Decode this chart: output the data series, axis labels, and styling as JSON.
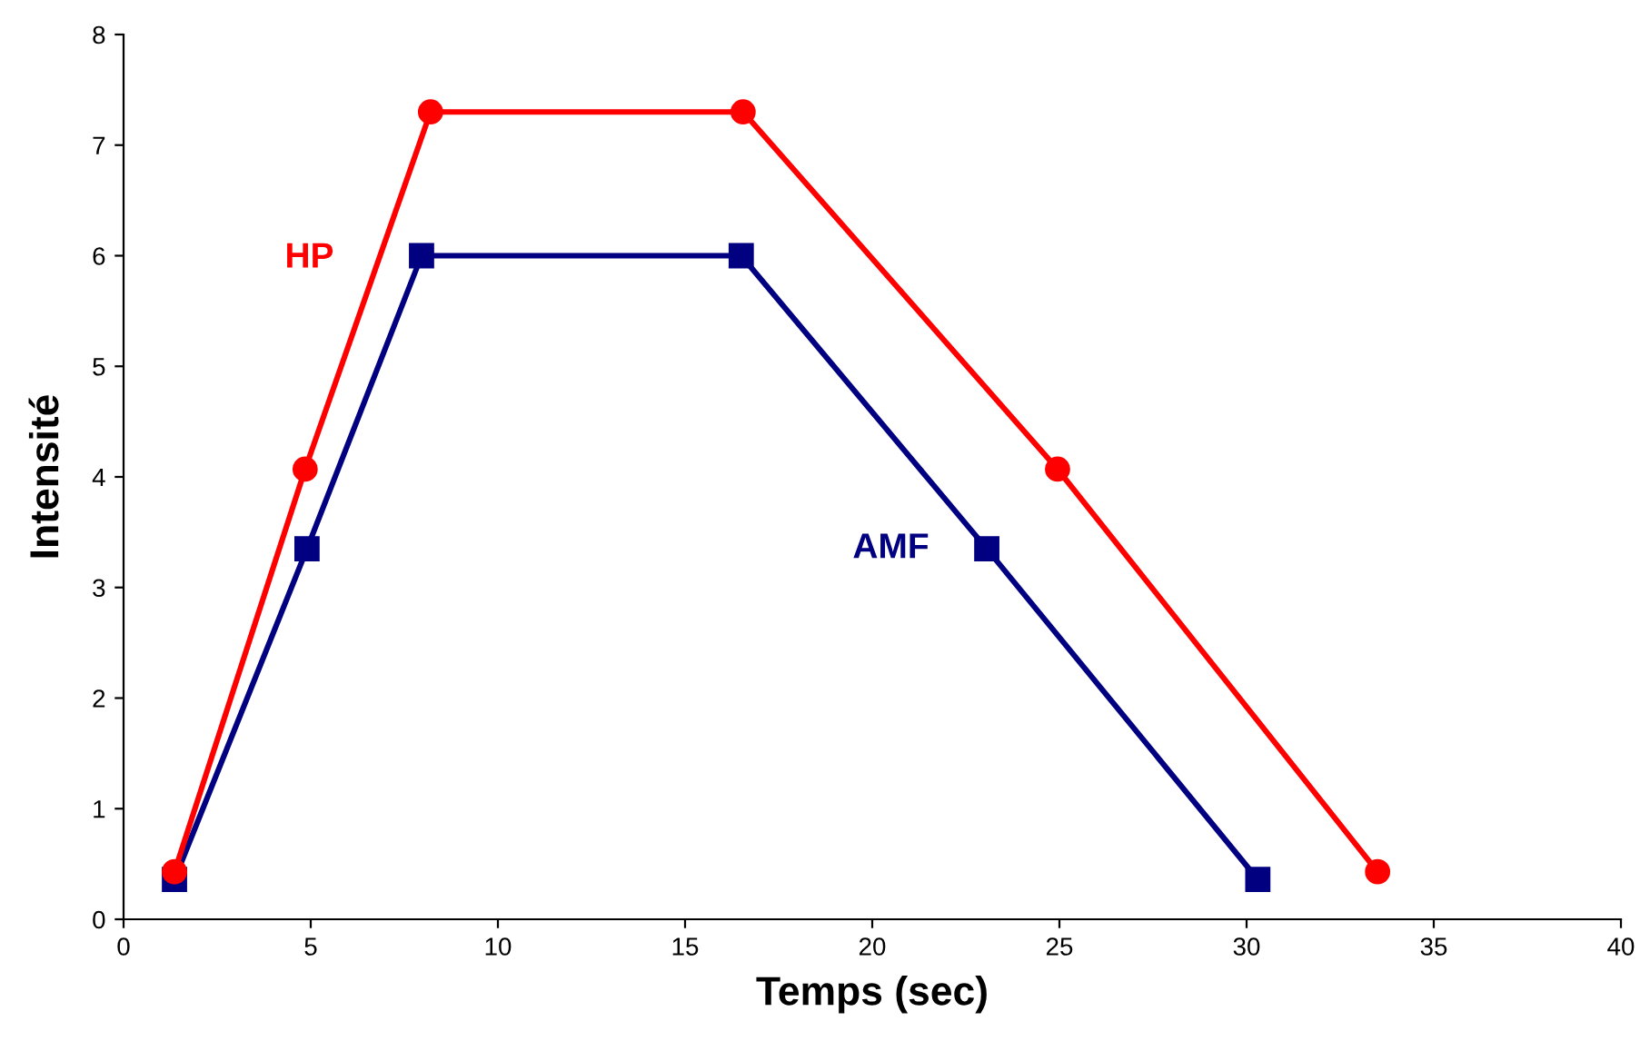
{
  "chart_data": {
    "type": "line",
    "xlabel": "Temps (sec)",
    "ylabel": "Intensité",
    "xlim": [
      0,
      40
    ],
    "xticks": [
      0,
      5,
      10,
      15,
      20,
      25,
      30,
      35,
      40
    ],
    "ylim": [
      0,
      8
    ],
    "yticks": [
      0,
      1,
      2,
      3,
      4,
      5,
      6,
      7,
      8
    ],
    "grid": false,
    "legend": false,
    "line_style": "solid",
    "series": [
      {
        "name": "HP",
        "color": "#ff0000",
        "marker": "circle",
        "x": [
          1.36,
          4.85,
          8.2,
          16.55,
          24.95,
          33.5
        ],
        "values": [
          0.43,
          4.07,
          7.3,
          7.3,
          4.07,
          0.43
        ]
      },
      {
        "name": "AMF",
        "color": "#000080",
        "marker": "square",
        "x": [
          1.36,
          4.9,
          7.96,
          16.5,
          23.06,
          30.3
        ],
        "values": [
          0.36,
          3.35,
          6.0,
          6.0,
          3.35,
          0.36
        ]
      }
    ]
  }
}
